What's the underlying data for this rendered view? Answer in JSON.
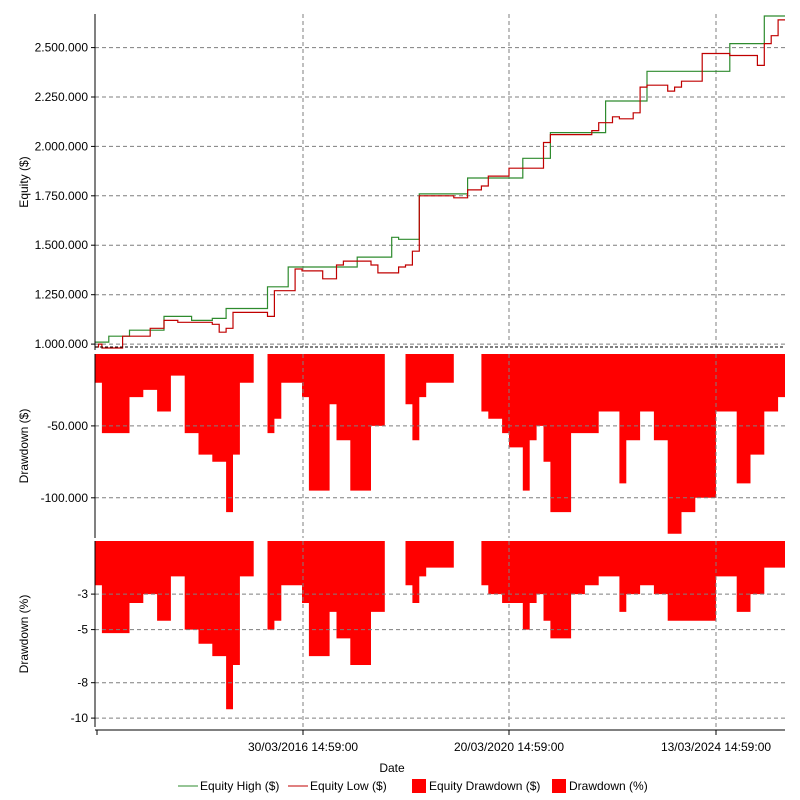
{
  "chart_data": {
    "type": "line",
    "xlabel": "Date",
    "x_ticks": [
      "30/03/2016 14:59:00",
      "20/03/2020 14:59:00",
      "13/03/2024 14:59:00"
    ],
    "grid": true,
    "legend_position": "bottom",
    "legend": [
      {
        "label": "Equity High ($)",
        "color": "#2e8b2e",
        "kind": "line"
      },
      {
        "label": "Equity Low ($)",
        "color": "#c00000",
        "kind": "line"
      },
      {
        "label": "Equity Drawdown ($)",
        "color": "#ff0000",
        "kind": "box"
      },
      {
        "label": "Drawdown (%)",
        "color": "#ff0000",
        "kind": "box"
      }
    ],
    "panels": [
      {
        "name": "equity",
        "ylabel": "Equity ($)",
        "ylim": [
          970000,
          2670000
        ],
        "y_ticks": [
          1000000,
          1250000,
          1500000,
          1750000,
          2000000,
          2250000,
          2500000
        ],
        "y_tick_labels": [
          "1.000.000",
          "1.250.000",
          "1.500.000",
          "1.750.000",
          "2.000.000",
          "2.250.000",
          "2.500.000"
        ],
        "series": [
          {
            "name": "Equity High ($)",
            "color": "#2e8b2e",
            "x": [
              0.0,
              0.02,
              0.04,
              0.05,
              0.07,
              0.1,
              0.12,
              0.14,
              0.17,
              0.19,
              0.2,
              0.22,
              0.25,
              0.28,
              0.31,
              0.35,
              0.38,
              0.4,
              0.43,
              0.44,
              0.47,
              0.54,
              0.62,
              0.66,
              0.7,
              0.74,
              0.75,
              0.8,
              0.86,
              0.92,
              0.97,
              1.0
            ],
            "y": [
              1010000,
              1040000,
              1040000,
              1070000,
              1070000,
              1140000,
              1140000,
              1120000,
              1130000,
              1180000,
              1180000,
              1180000,
              1290000,
              1390000,
              1390000,
              1390000,
              1440000,
              1440000,
              1540000,
              1530000,
              1760000,
              1840000,
              1940000,
              2070000,
              2070000,
              2230000,
              2230000,
              2380000,
              2380000,
              2520000,
              2660000,
              2660000
            ]
          },
          {
            "name": "Equity Low ($)",
            "color": "#c00000",
            "x": [
              0.0,
              0.005,
              0.01,
              0.02,
              0.04,
              0.05,
              0.08,
              0.1,
              0.12,
              0.14,
              0.17,
              0.18,
              0.19,
              0.2,
              0.24,
              0.25,
              0.26,
              0.29,
              0.3,
              0.33,
              0.35,
              0.36,
              0.4,
              0.41,
              0.44,
              0.45,
              0.46,
              0.47,
              0.52,
              0.54,
              0.56,
              0.57,
              0.6,
              0.6,
              0.63,
              0.65,
              0.66,
              0.68,
              0.7,
              0.72,
              0.73,
              0.75,
              0.76,
              0.78,
              0.79,
              0.8,
              0.83,
              0.84,
              0.85,
              0.86,
              0.88,
              0.89,
              0.92,
              0.96,
              0.97,
              0.98,
              0.99,
              1.0
            ],
            "y": [
              985000,
              1000000,
              980000,
              980000,
              1040000,
              1040000,
              1080000,
              1120000,
              1110000,
              1110000,
              1100000,
              1060000,
              1080000,
              1160000,
              1160000,
              1140000,
              1270000,
              1380000,
              1370000,
              1330000,
              1400000,
              1420000,
              1400000,
              1360000,
              1390000,
              1400000,
              1470000,
              1750000,
              1740000,
              1780000,
              1800000,
              1850000,
              1860000,
              1890000,
              1890000,
              2020000,
              2060000,
              2060000,
              2060000,
              2080000,
              2120000,
              2150000,
              2140000,
              2170000,
              2300000,
              2310000,
              2280000,
              2300000,
              2330000,
              2330000,
              2470000,
              2470000,
              2460000,
              2410000,
              2520000,
              2560000,
              2640000,
              2640000
            ]
          }
        ]
      },
      {
        "name": "drawdown-usd",
        "ylabel": "Drawdown ($)",
        "ylim": [
          -128000,
          0
        ],
        "y_ticks": [
          -50000,
          -100000
        ],
        "y_tick_labels": [
          "-50.000",
          "-100.000"
        ],
        "series": [
          {
            "name": "Equity Drawdown ($)",
            "color": "#ff0000",
            "x": [
              0.0,
              0.01,
              0.03,
              0.05,
              0.07,
              0.09,
              0.11,
              0.13,
              0.15,
              0.17,
              0.19,
              0.2,
              0.21,
              0.23,
              0.25,
              0.26,
              0.27,
              0.3,
              0.31,
              0.34,
              0.35,
              0.37,
              0.4,
              0.42,
              0.43,
              0.45,
              0.46,
              0.47,
              0.48,
              0.5,
              0.52,
              0.54,
              0.56,
              0.57,
              0.59,
              0.6,
              0.62,
              0.63,
              0.64,
              0.65,
              0.66,
              0.69,
              0.71,
              0.73,
              0.76,
              0.77,
              0.79,
              0.81,
              0.83,
              0.85,
              0.86,
              0.87,
              0.9,
              0.93,
              0.95,
              0.97,
              0.99,
              1.0
            ],
            "y": [
              -20000,
              -55000,
              -55000,
              -30000,
              -25000,
              -40000,
              -15000,
              -55000,
              -70000,
              -75000,
              -110000,
              -70000,
              -20000,
              0,
              -55000,
              -45000,
              -20000,
              -30000,
              -95000,
              -35000,
              -60000,
              -95000,
              -50000,
              0,
              0,
              -35000,
              -60000,
              -30000,
              -20000,
              -20000,
              0,
              0,
              -40000,
              -45000,
              -55000,
              -65000,
              -95000,
              -60000,
              -50000,
              -75000,
              -110000,
              -55000,
              -55000,
              -40000,
              -90000,
              -60000,
              -40000,
              -60000,
              -125000,
              -110000,
              -110000,
              -100000,
              -40000,
              -90000,
              -70000,
              -40000,
              -30000,
              -30000
            ]
          }
        ]
      },
      {
        "name": "drawdown-pct",
        "ylabel": "Drawdown (%)",
        "ylim": [
          -10.5,
          0
        ],
        "y_ticks": [
          -3,
          -5,
          -8,
          -10
        ],
        "y_tick_labels": [
          "-3",
          "-5",
          "-8",
          "-10"
        ],
        "series": [
          {
            "name": "Drawdown (%)",
            "color": "#ff0000",
            "x": [
              0.0,
              0.01,
              0.03,
              0.05,
              0.07,
              0.09,
              0.11,
              0.13,
              0.15,
              0.17,
              0.19,
              0.2,
              0.21,
              0.23,
              0.25,
              0.26,
              0.27,
              0.3,
              0.31,
              0.34,
              0.35,
              0.37,
              0.4,
              0.42,
              0.43,
              0.45,
              0.46,
              0.47,
              0.48,
              0.5,
              0.52,
              0.54,
              0.56,
              0.57,
              0.59,
              0.6,
              0.62,
              0.63,
              0.64,
              0.65,
              0.66,
              0.69,
              0.71,
              0.73,
              0.76,
              0.77,
              0.79,
              0.81,
              0.83,
              0.85,
              0.86,
              0.87,
              0.9,
              0.93,
              0.95,
              0.97,
              0.99,
              1.0
            ],
            "y": [
              -2.5,
              -5.2,
              -5.2,
              -3.5,
              -3.0,
              -4.5,
              -2.0,
              -5.0,
              -5.8,
              -6.5,
              -9.5,
              -7.0,
              -2.0,
              0,
              -5.0,
              -4.5,
              -2.5,
              -3.5,
              -6.5,
              -4.0,
              -5.5,
              -7.0,
              -4.0,
              0,
              0,
              -2.5,
              -3.5,
              -2.0,
              -1.5,
              -1.5,
              0,
              0,
              -2.5,
              -3.0,
              -3.5,
              -3.5,
              -5.0,
              -3.5,
              -3.0,
              -4.5,
              -5.5,
              -3.0,
              -2.5,
              -2.0,
              -4.0,
              -3.0,
              -2.5,
              -3.0,
              -4.5,
              -4.5,
              -4.5,
              -4.5,
              -2.0,
              -4.0,
              -3.0,
              -1.5,
              -1.5,
              -1.5
            ]
          }
        ]
      }
    ]
  }
}
